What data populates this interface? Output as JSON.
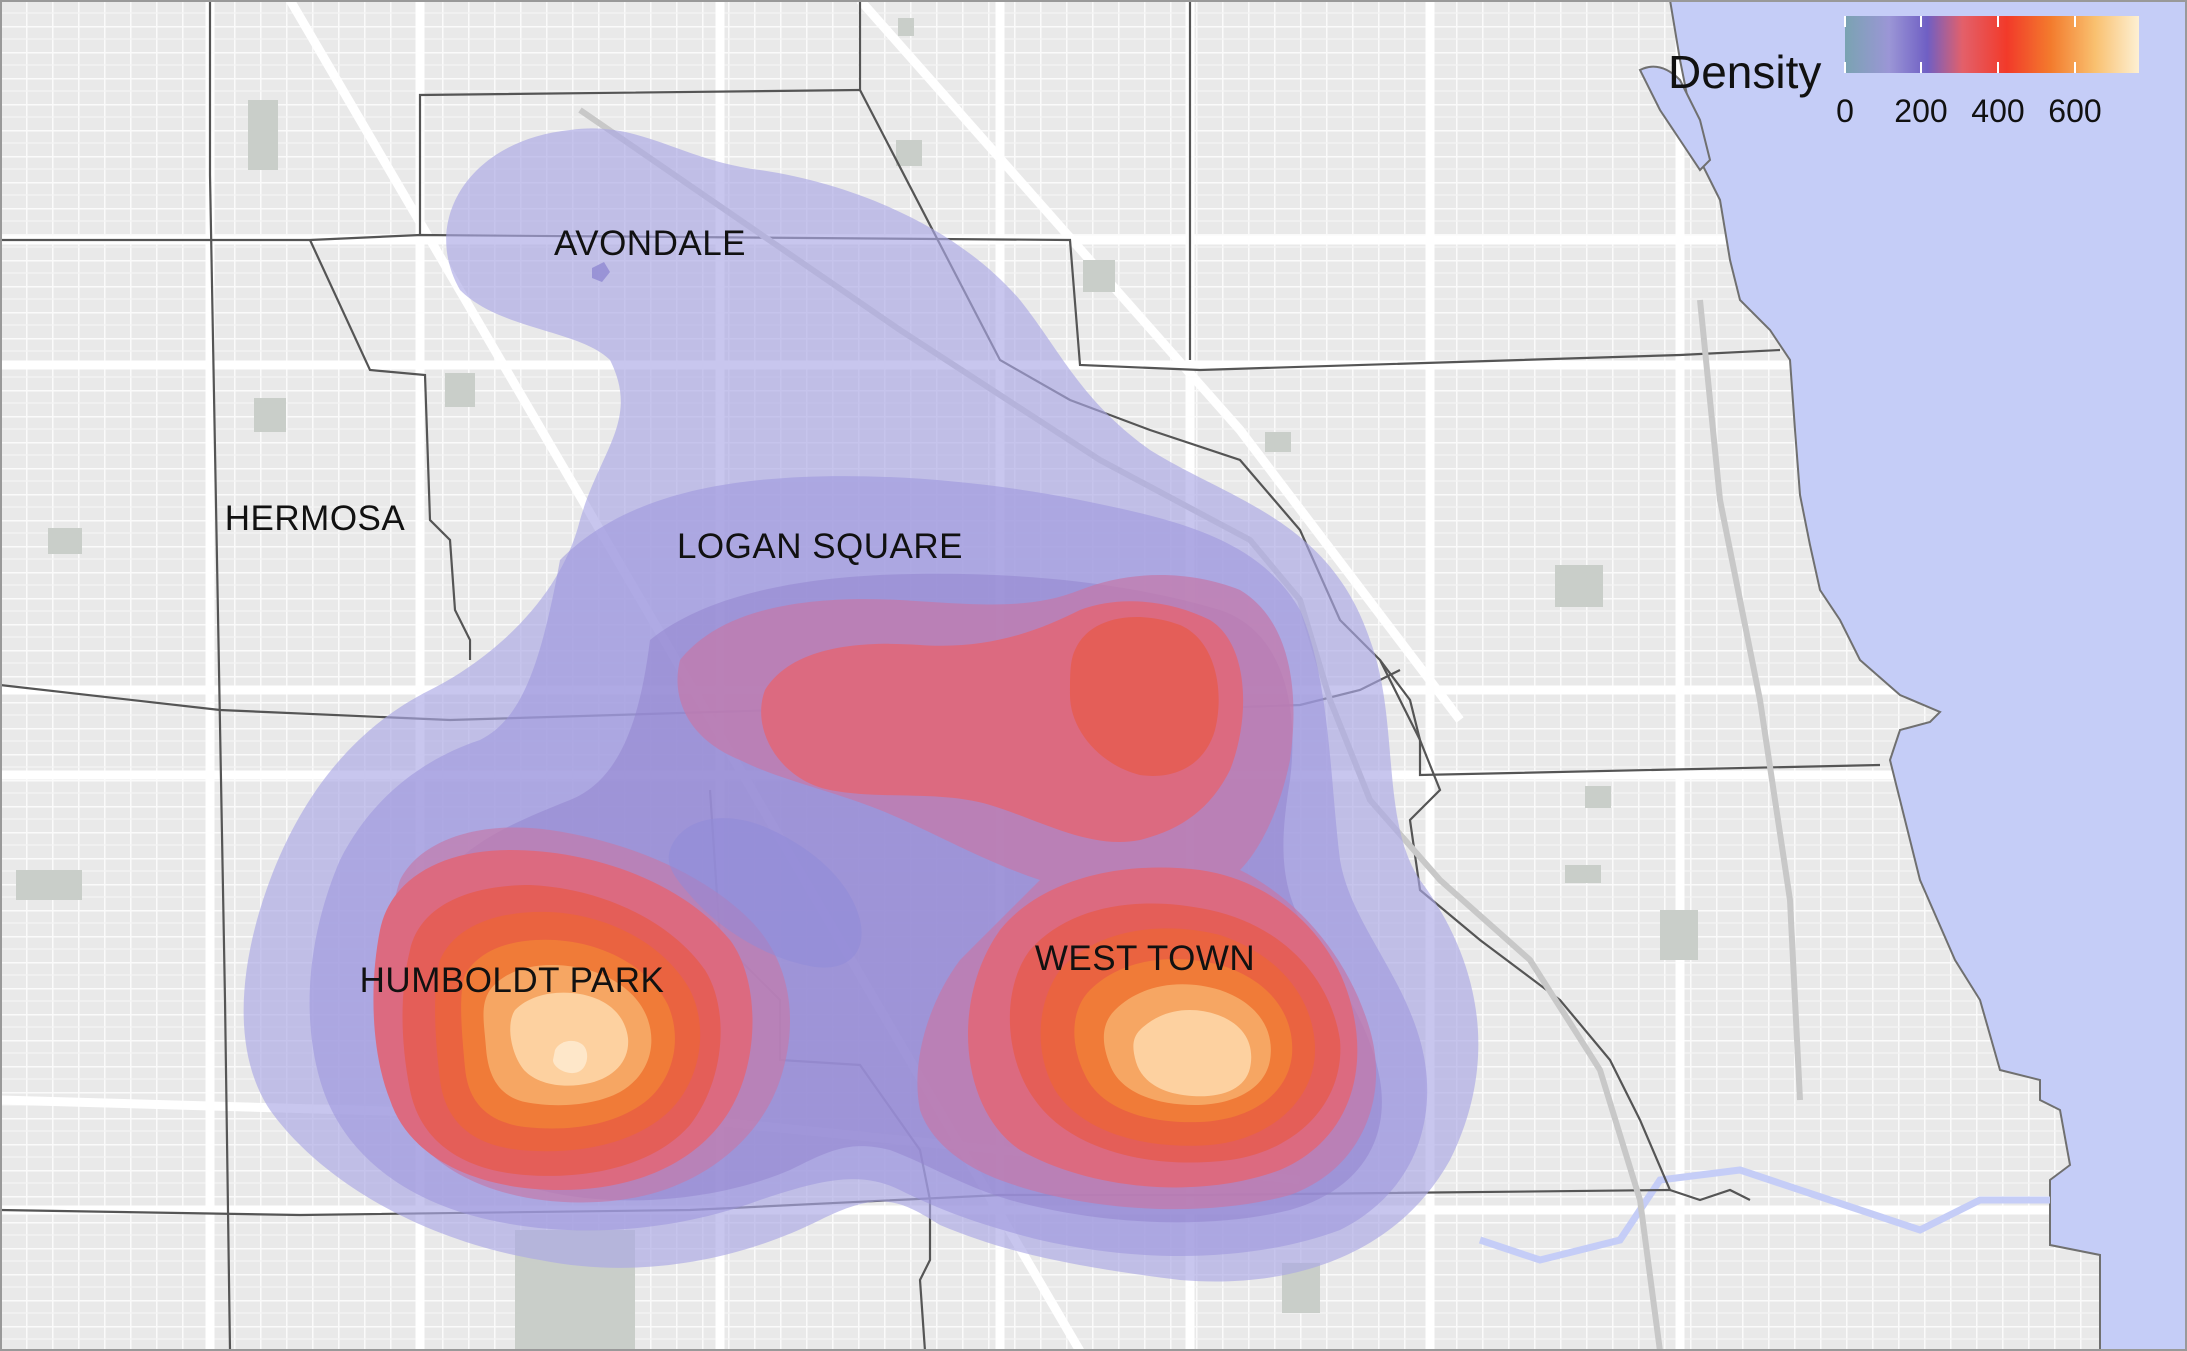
{
  "map": {
    "neighborhoods": [
      {
        "name": "AVONDALE"
      },
      {
        "name": "HERMOSA"
      },
      {
        "name": "LOGAN SQUARE"
      },
      {
        "name": "HUMBOLDT PARK"
      },
      {
        "name": "WEST TOWN"
      }
    ],
    "legend": {
      "title": "Density",
      "ticks": [
        "0",
        "200",
        "400",
        "600"
      ],
      "gradient": [
        "#7aa3b2",
        "#9b96d6",
        "#6f5fc4",
        "#e3606a",
        "#f23a2a",
        "#f37b2d",
        "#f9c06f",
        "#fdf0d3"
      ]
    },
    "colors": {
      "water": "#c5cdf7",
      "land": "#ebebeb",
      "streets": "#ffffff",
      "parks": "#c9cec9",
      "boundaries": "#555555",
      "density_levels": [
        "#aaa7e5",
        "#9a94dc",
        "#9385d0",
        "#c37aab",
        "#dc6a80",
        "#e45e58",
        "#ea6340",
        "#f07b38",
        "#f6a663",
        "#fdd1a0",
        "#fee7c9"
      ]
    }
  }
}
